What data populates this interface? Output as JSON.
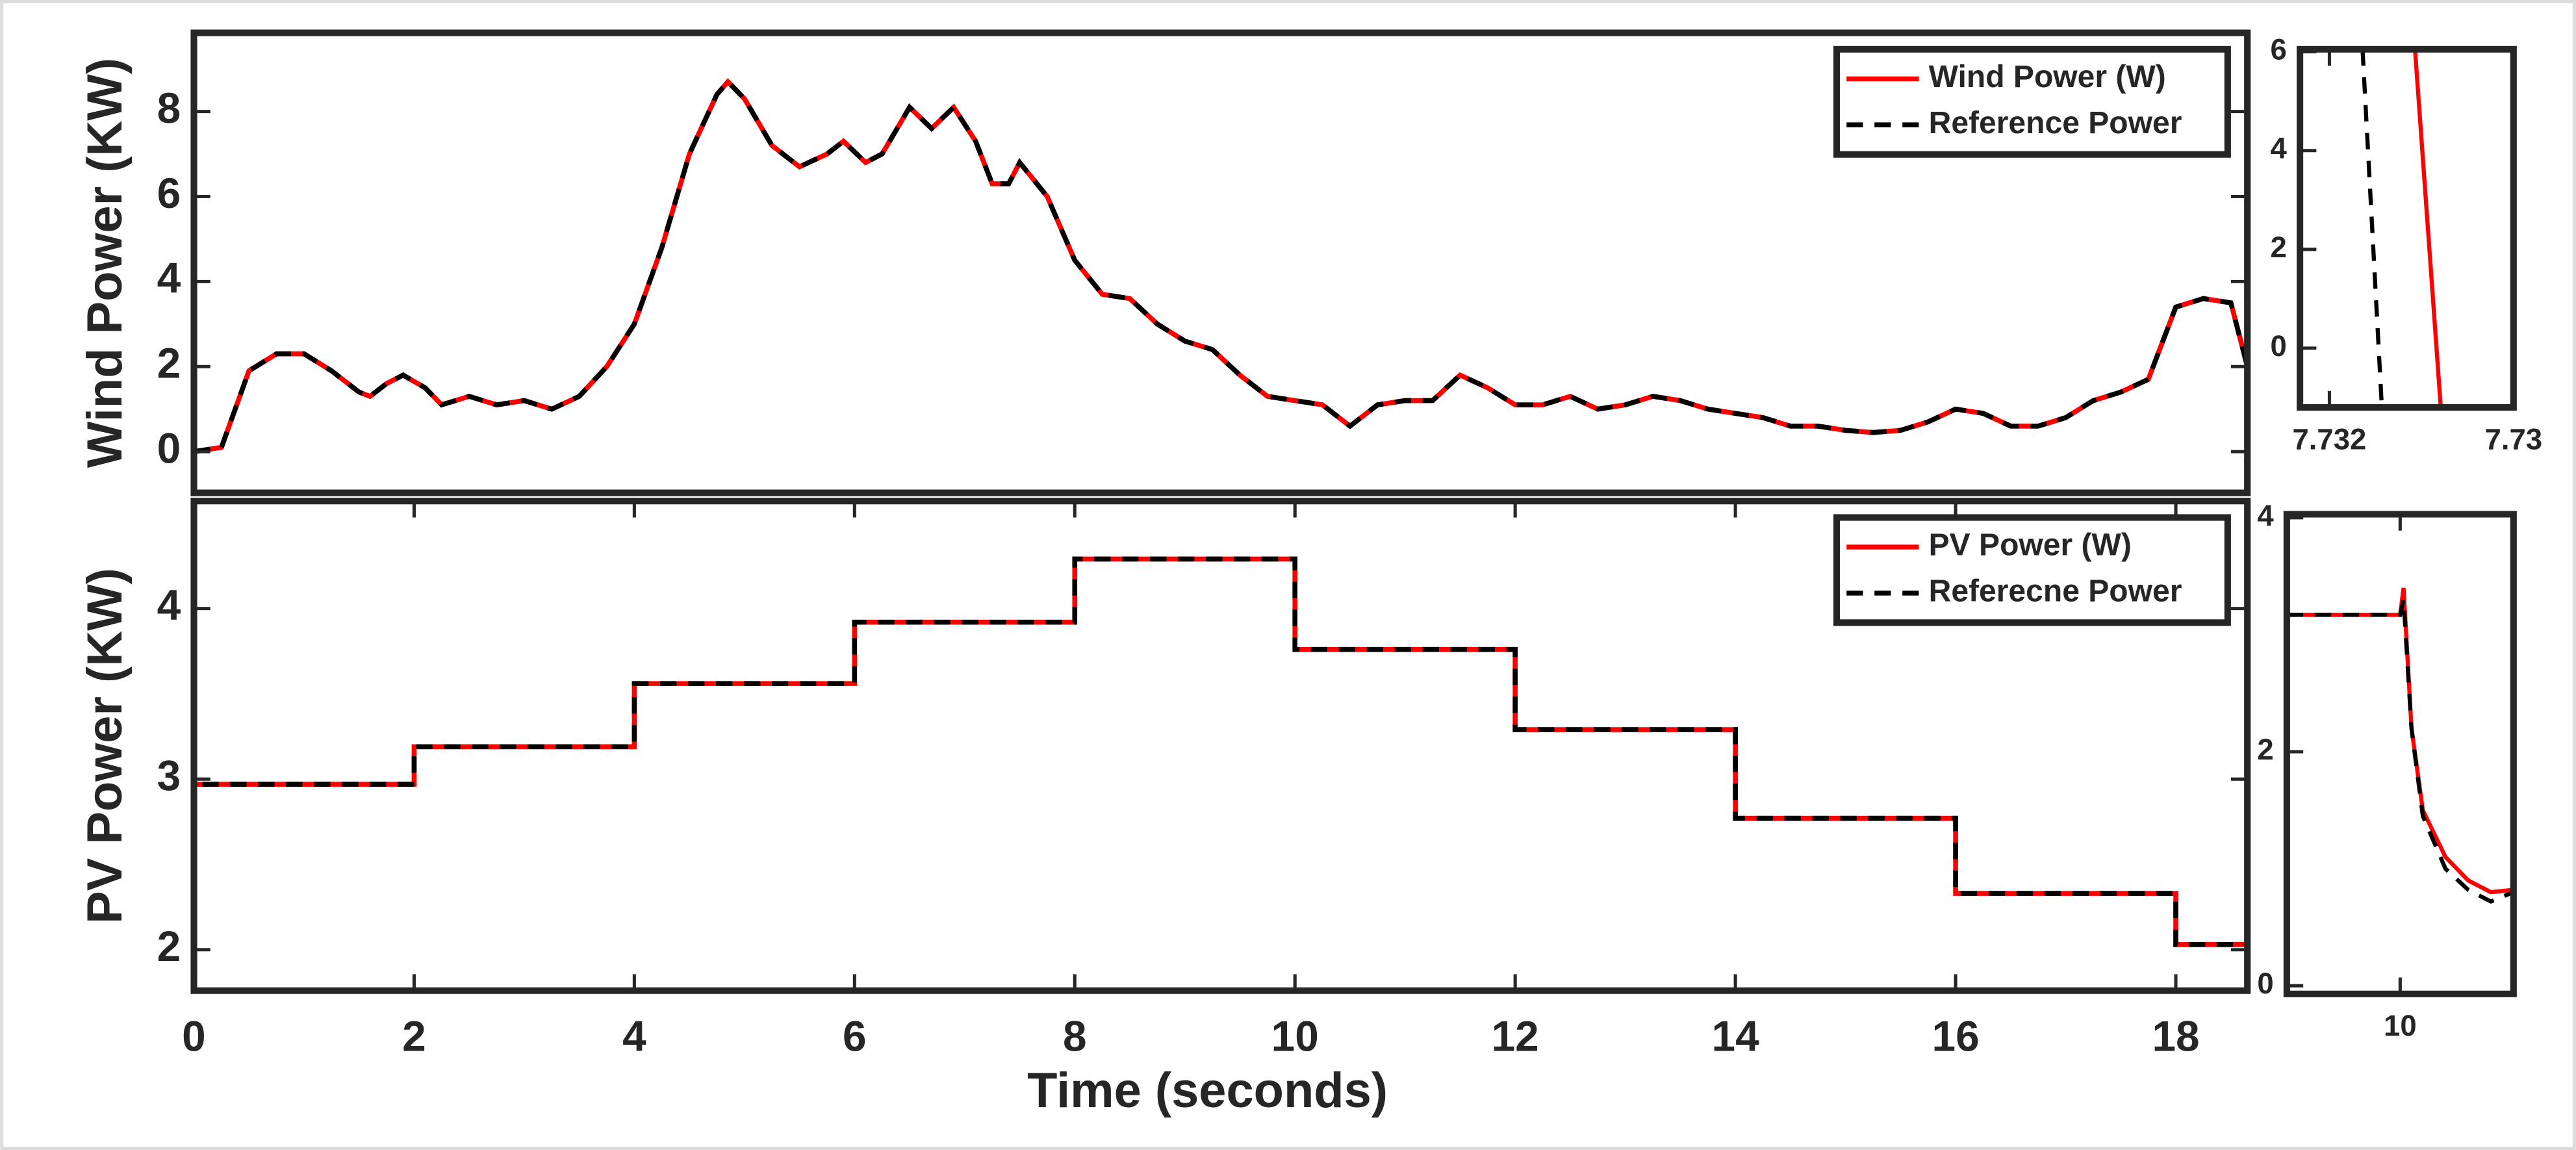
{
  "chart_data": [
    {
      "type": "line",
      "ylabel": "Wind Power (KW)",
      "xlim": [
        0,
        18.65
      ],
      "ylim": [
        -0.97,
        9.85
      ],
      "yticks": [
        0,
        2,
        4,
        6,
        8
      ],
      "legend": "upper right",
      "x": [
        0,
        0.25,
        0.5,
        0.75,
        1.0,
        1.25,
        1.5,
        1.6,
        1.75,
        1.9,
        2.1,
        2.25,
        2.5,
        2.75,
        3.0,
        3.25,
        3.5,
        3.75,
        4.0,
        4.25,
        4.5,
        4.75,
        4.85,
        5.0,
        5.25,
        5.5,
        5.75,
        5.9,
        6.1,
        6.25,
        6.5,
        6.7,
        6.9,
        7.1,
        7.25,
        7.4,
        7.5,
        7.75,
        8.0,
        8.25,
        8.5,
        8.75,
        9.0,
        9.25,
        9.5,
        9.75,
        10.0,
        10.25,
        10.5,
        10.75,
        11.0,
        11.25,
        11.5,
        11.75,
        12.0,
        12.25,
        12.5,
        12.75,
        13.0,
        13.25,
        13.5,
        13.75,
        14.0,
        14.25,
        14.5,
        14.75,
        15.0,
        15.25,
        15.5,
        15.75,
        16.0,
        16.25,
        16.5,
        16.75,
        17.0,
        17.25,
        17.5,
        17.75,
        18.0,
        18.25,
        18.5,
        18.65
      ],
      "series": [
        {
          "name": "Wind Power (W)",
          "color": "#ff0000",
          "dash": false,
          "values": [
            0,
            0.1,
            1.9,
            2.3,
            2.3,
            1.9,
            1.4,
            1.3,
            1.6,
            1.8,
            1.5,
            1.1,
            1.3,
            1.1,
            1.2,
            1.0,
            1.3,
            2.0,
            3.0,
            4.8,
            7.0,
            8.4,
            8.7,
            8.3,
            7.2,
            6.7,
            7.0,
            7.3,
            6.8,
            7.0,
            8.1,
            7.6,
            8.1,
            7.3,
            6.3,
            6.3,
            6.8,
            6.0,
            4.5,
            3.7,
            3.6,
            3.0,
            2.6,
            2.4,
            1.8,
            1.3,
            1.2,
            1.1,
            0.6,
            1.1,
            1.2,
            1.2,
            1.8,
            1.5,
            1.1,
            1.1,
            1.3,
            1.0,
            1.1,
            1.3,
            1.2,
            1.0,
            0.9,
            0.8,
            0.6,
            0.6,
            0.5,
            0.45,
            0.5,
            0.7,
            1.0,
            0.9,
            0.6,
            0.6,
            0.8,
            1.2,
            1.4,
            1.7,
            3.4,
            3.6,
            3.5,
            2.0
          ]
        },
        {
          "name": "Reference Power",
          "color": "#000000",
          "dash": true,
          "values": [
            0,
            0.1,
            1.9,
            2.3,
            2.3,
            1.9,
            1.4,
            1.3,
            1.6,
            1.8,
            1.5,
            1.1,
            1.3,
            1.1,
            1.2,
            1.0,
            1.3,
            2.0,
            3.0,
            4.8,
            7.0,
            8.4,
            8.7,
            8.3,
            7.2,
            6.7,
            7.0,
            7.3,
            6.8,
            7.0,
            8.1,
            7.6,
            8.1,
            7.3,
            6.3,
            6.3,
            6.8,
            6.0,
            4.5,
            3.7,
            3.6,
            3.0,
            2.6,
            2.4,
            1.8,
            1.3,
            1.2,
            1.1,
            0.6,
            1.1,
            1.2,
            1.2,
            1.8,
            1.5,
            1.1,
            1.1,
            1.3,
            1.0,
            1.1,
            1.3,
            1.2,
            1.0,
            0.9,
            0.8,
            0.6,
            0.6,
            0.5,
            0.45,
            0.5,
            0.7,
            1.0,
            0.9,
            0.6,
            0.6,
            0.8,
            1.2,
            1.4,
            1.7,
            3.4,
            3.6,
            3.5,
            2.0
          ]
        }
      ]
    },
    {
      "type": "line",
      "ylabel": "PV Power (KW)",
      "xlabel": "Time (seconds)",
      "xlim": [
        0,
        18.65
      ],
      "ylim": [
        1.76,
        4.63
      ],
      "yticks": [
        2,
        3,
        4
      ],
      "xticks": [
        0,
        2,
        4,
        6,
        8,
        10,
        12,
        14,
        16,
        18
      ],
      "legend": "upper right",
      "x": [
        0,
        0,
        2,
        2,
        4,
        4,
        6,
        6,
        8,
        8,
        10,
        10,
        12,
        12,
        14,
        14,
        16,
        16,
        18,
        18,
        18.65
      ],
      "series": [
        {
          "name": "PV Power (W)",
          "color": "#ff0000",
          "dash": false,
          "values": [
            2.2,
            2.97,
            2.97,
            3.19,
            3.19,
            3.56,
            3.56,
            3.92,
            3.92,
            4.29,
            4.29,
            3.76,
            3.76,
            3.29,
            3.29,
            2.77,
            2.77,
            2.33,
            2.33,
            2.03,
            2.03
          ]
        },
        {
          "name": "Referecne Power",
          "color": "#000000",
          "dash": true,
          "values": [
            2.2,
            2.97,
            2.97,
            3.19,
            3.19,
            3.56,
            3.56,
            3.92,
            3.92,
            4.29,
            4.29,
            3.76,
            3.76,
            3.29,
            3.29,
            2.77,
            2.77,
            2.33,
            2.33,
            2.03,
            2.03
          ]
        }
      ]
    },
    {
      "type": "line",
      "xlim": [
        7.73168,
        7.734
      ],
      "ylim": [
        -1.2,
        6.05
      ],
      "yticks": [
        0,
        2,
        4,
        6
      ],
      "xticks": [
        7.732,
        {
          "value": 7.734,
          "label": "7.73"
        }
      ],
      "series": [
        {
          "color": "#ff0000",
          "dash": false,
          "x": [
            7.73293,
            7.73321
          ],
          "values": [
            6.05,
            -1.2
          ]
        },
        {
          "color": "#000000",
          "dash": true,
          "x": [
            7.73236,
            7.73257
          ],
          "values": [
            6.05,
            -1.2
          ]
        }
      ]
    },
    {
      "type": "line",
      "xlim": [
        9.9,
        10.1
      ],
      "ylim": [
        -0.07,
        4.03
      ],
      "yticks": [
        0,
        2,
        4
      ],
      "xticks": [
        10
      ],
      "series": [
        {
          "color": "#ff0000",
          "dash": false,
          "x": [
            9.9,
            10.0,
            10.003,
            10.01,
            10.02,
            10.04,
            10.06,
            10.08,
            10.1
          ],
          "values": [
            3.17,
            3.17,
            3.4,
            2.2,
            1.5,
            1.1,
            0.9,
            0.8,
            0.82
          ]
        },
        {
          "color": "#000000",
          "dash": true,
          "x": [
            9.9,
            10.0,
            10.003,
            10.01,
            10.02,
            10.04,
            10.06,
            10.08,
            10.1
          ],
          "values": [
            3.17,
            3.17,
            3.3,
            2.2,
            1.45,
            1.0,
            0.82,
            0.72,
            0.8
          ]
        }
      ]
    }
  ]
}
